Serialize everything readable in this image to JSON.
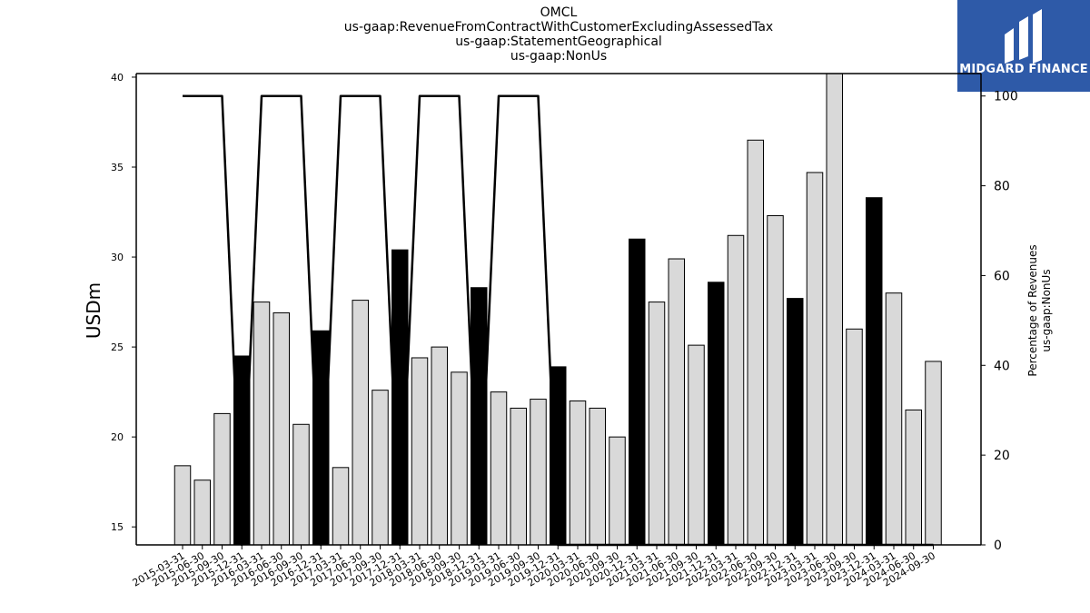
{
  "logo": {
    "text": "MIDGARD FINANCE"
  },
  "chart_data": {
    "type": "bar",
    "title_lines": [
      "OMCL",
      "us-gaap:RevenueFromContractWithCustomerExcludingAssessedTax",
      "us-gaap:StatementGeographical",
      "us-gaap:NonUs"
    ],
    "ylabel": "USDm",
    "y2label_lines": [
      "Percentage of Revenues",
      "us-gaap:NonUs"
    ],
    "ylim": [
      14,
      40.2
    ],
    "yticks": [
      15,
      20,
      25,
      30,
      35,
      40
    ],
    "y2lim": [
      0,
      105
    ],
    "y2ticks": [
      0,
      20,
      40,
      60,
      80,
      100
    ],
    "categories": [
      "2015-03-31",
      "2015-06-30",
      "2015-09-30",
      "2015-12-31",
      "2016-03-31",
      "2016-06-30",
      "2016-09-30",
      "2016-12-31",
      "2017-03-31",
      "2017-06-30",
      "2017-09-30",
      "2017-12-31",
      "2018-03-31",
      "2018-06-30",
      "2018-09-30",
      "2018-12-31",
      "2019-03-31",
      "2019-06-30",
      "2019-09-30",
      "2019-12-31",
      "2020-03-31",
      "2020-06-30",
      "2020-09-30",
      "2020-12-31",
      "2021-03-31",
      "2021-06-30",
      "2021-09-30",
      "2021-12-31",
      "2022-03-31",
      "2022-06-30",
      "2022-09-30",
      "2022-12-31",
      "2023-03-31",
      "2023-06-30",
      "2023-09-30",
      "2023-12-31",
      "2024-03-31",
      "2024-06-30",
      "2024-09-30"
    ],
    "series": [
      {
        "type": "bar",
        "values": [
          18.4,
          17.6,
          21.3,
          24.5,
          27.5,
          26.9,
          20.7,
          25.9,
          18.3,
          27.6,
          22.6,
          30.4,
          24.4,
          25.0,
          23.6,
          28.3,
          22.5,
          21.6,
          22.1,
          23.9,
          22.0,
          21.6,
          20.0,
          31.0,
          27.5,
          29.9,
          25.1,
          28.6,
          31.2,
          36.5,
          32.3,
          27.7,
          34.7,
          40.3,
          26.0,
          33.3,
          28.0,
          21.5,
          24.2
        ],
        "highlight": [
          false,
          false,
          false,
          true,
          false,
          false,
          false,
          true,
          false,
          false,
          false,
          true,
          false,
          false,
          false,
          true,
          false,
          false,
          false,
          true,
          false,
          false,
          false,
          true,
          false,
          false,
          false,
          true,
          false,
          false,
          false,
          true,
          false,
          false,
          false,
          true,
          false,
          false,
          false
        ]
      },
      {
        "type": "line",
        "axis": "right",
        "values": [
          100,
          100,
          100,
          0,
          100,
          100,
          100,
          0,
          100,
          100,
          100,
          0,
          100,
          100,
          100,
          0,
          100,
          100,
          100,
          0,
          0,
          0,
          0,
          0,
          0,
          0,
          0,
          0,
          0,
          0,
          0,
          0,
          0,
          0,
          0,
          0,
          0,
          0,
          0
        ]
      }
    ],
    "colors": {
      "bar": "#d9d9d9",
      "bar_highlight": "#000000",
      "edge": "#000000",
      "line": "#000000"
    },
    "grid": false
  }
}
